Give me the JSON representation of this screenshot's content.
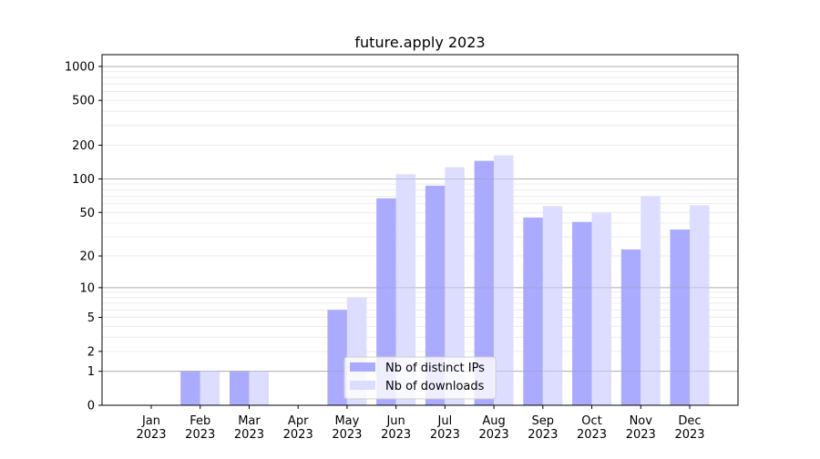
{
  "chart_data": {
    "type": "bar",
    "title": "future.apply 2023",
    "xlabel": "",
    "ylabel": "",
    "yscale": "symlog (log10(1+y))",
    "ylim": [
      0,
      1300
    ],
    "yticks": [
      0,
      1,
      2,
      5,
      10,
      20,
      50,
      100,
      200,
      500,
      1000
    ],
    "grid": true,
    "legend_placement": "lower-center",
    "categories": [
      "Jan\n2023",
      "Feb\n2023",
      "Mar\n2023",
      "Apr\n2023",
      "May\n2023",
      "Jun\n2023",
      "Jul\n2023",
      "Aug\n2023",
      "Sep\n2023",
      "Oct\n2023",
      "Nov\n2023",
      "Dec\n2023"
    ],
    "series": [
      {
        "name": "Nb of distinct IPs",
        "color": "#aaaaff",
        "values": [
          0,
          1,
          1,
          0,
          6,
          67,
          87,
          145,
          45,
          41,
          23,
          35
        ]
      },
      {
        "name": "Nb of downloads",
        "color": "#ddddff",
        "values": [
          0,
          1,
          1,
          0,
          8,
          110,
          127,
          162,
          57,
          50,
          70,
          58
        ]
      }
    ]
  }
}
